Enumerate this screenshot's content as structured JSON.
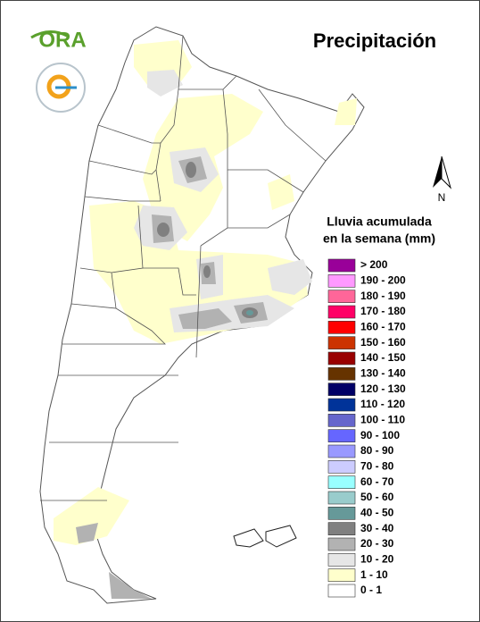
{
  "title": "Precipitación",
  "logo": {
    "text": "ORA"
  },
  "north": "N",
  "legend": {
    "title_lines": [
      "Lluvia acumulada",
      "en la semana (mm)"
    ],
    "items": [
      {
        "label": "> 200",
        "color": "#990099"
      },
      {
        "label": "190 - 200",
        "color": "#ff99ff"
      },
      {
        "label": "180 - 190",
        "color": "#ff6699"
      },
      {
        "label": "170 - 180",
        "color": "#ff0066"
      },
      {
        "label": "160 - 170",
        "color": "#ff0000"
      },
      {
        "label": "150 - 160",
        "color": "#cc3300"
      },
      {
        "label": "140 - 150",
        "color": "#990000"
      },
      {
        "label": "130 - 140",
        "color": "#663300"
      },
      {
        "label": "120 - 130",
        "color": "#000066"
      },
      {
        "label": "110 - 120",
        "color": "#003399"
      },
      {
        "label": "100 - 110",
        "color": "#6666cc"
      },
      {
        "label": "90 - 100",
        "color": "#6666ff"
      },
      {
        "label": "80 - 90",
        "color": "#9999ff"
      },
      {
        "label": "70 - 80",
        "color": "#ccccff"
      },
      {
        "label": "60 - 70",
        "color": "#99ffff"
      },
      {
        "label": "50 - 60",
        "color": "#99cccc"
      },
      {
        "label": "40 - 50",
        "color": "#669999"
      },
      {
        "label": "30 - 40",
        "color": "#808080"
      },
      {
        "label": "20 - 30",
        "color": "#b2b2b2"
      },
      {
        "label": "10 - 20",
        "color": "#e6e6e6"
      },
      {
        "label": "1 - 10",
        "color": "#ffffcc"
      },
      {
        "label": "0 - 1",
        "color": "#ffffff"
      }
    ]
  }
}
